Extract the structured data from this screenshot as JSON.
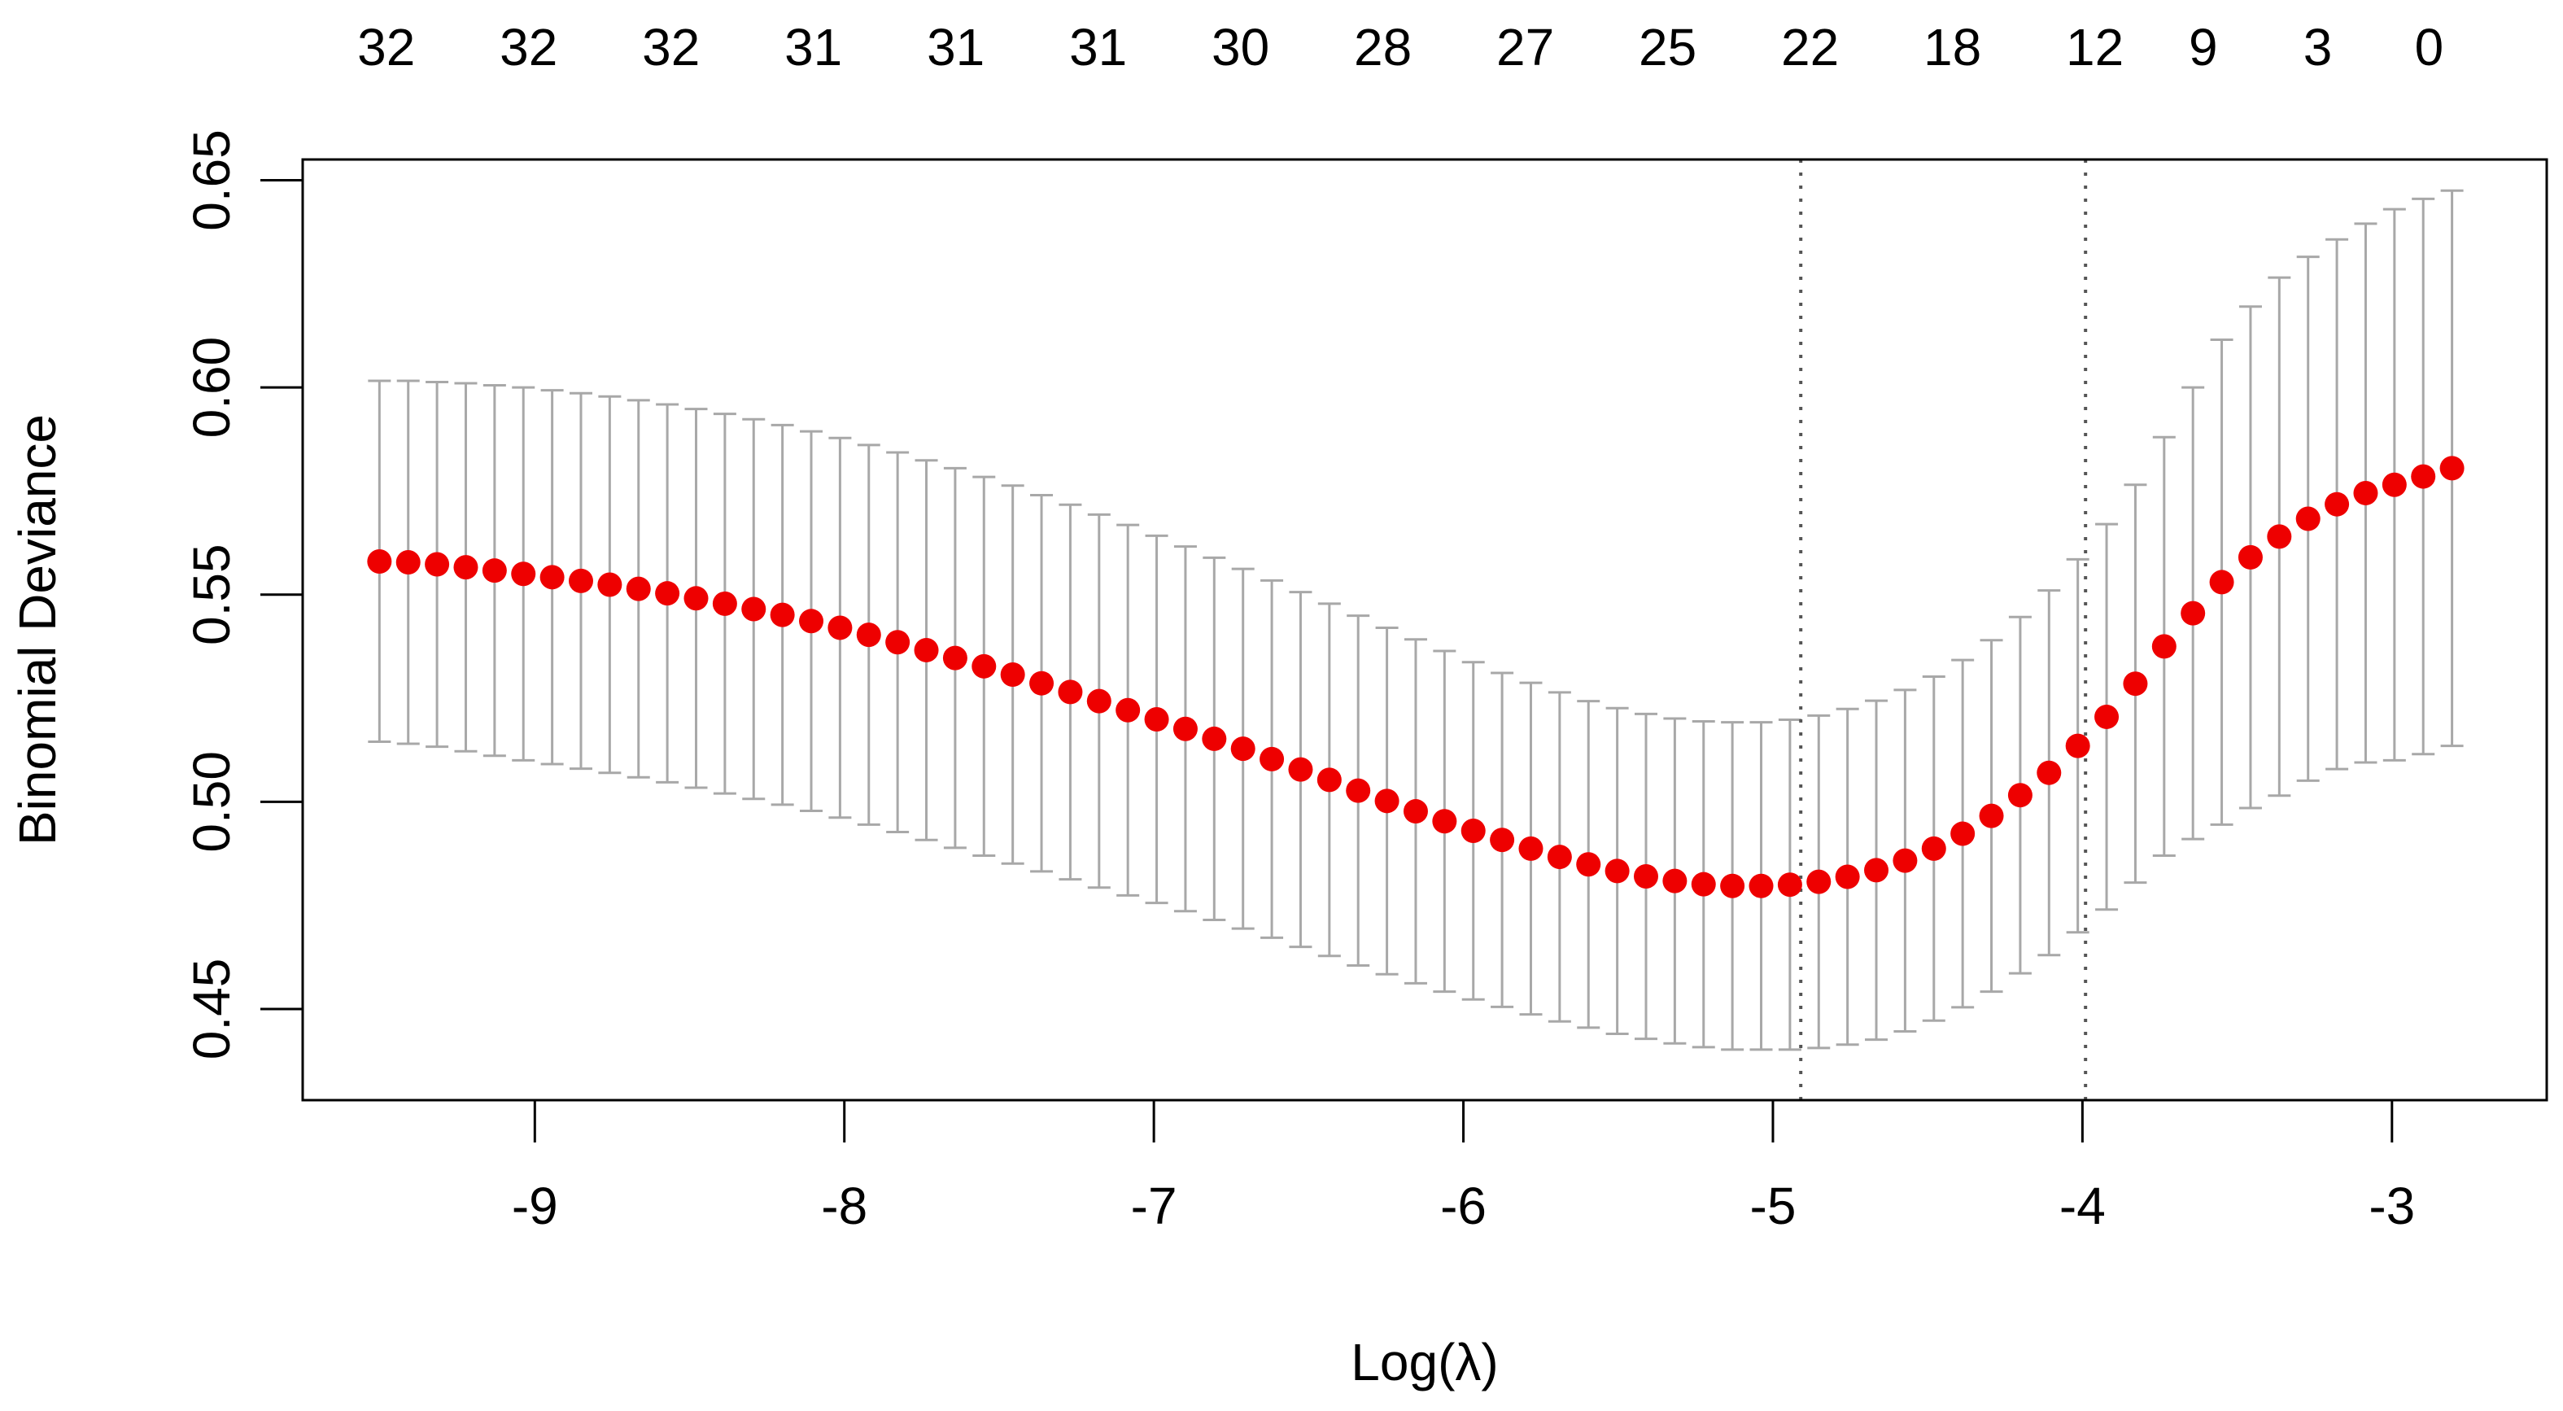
{
  "chart_data": {
    "type": "scatter",
    "title": "",
    "xlabel": "Log(λ)",
    "ylabel": "Binomial Deviance",
    "xlim": [
      -9.75,
      -2.5
    ],
    "ylim": [
      0.428,
      0.655
    ],
    "x_ticks": [
      {
        "value": -9,
        "label": "-9"
      },
      {
        "value": -8,
        "label": "-8"
      },
      {
        "value": -7,
        "label": "-7"
      },
      {
        "value": -6,
        "label": "-6"
      },
      {
        "value": -5,
        "label": "-5"
      },
      {
        "value": -4,
        "label": "-4"
      },
      {
        "value": -3,
        "label": "-3"
      }
    ],
    "y_ticks": [
      {
        "value": 0.45,
        "label": "0.45"
      },
      {
        "value": 0.5,
        "label": "0.50"
      },
      {
        "value": 0.55,
        "label": "0.55"
      },
      {
        "value": 0.6,
        "label": "0.60"
      },
      {
        "value": 0.65,
        "label": "0.65"
      }
    ],
    "top_ticks": [
      {
        "x": -9.48,
        "label": "32"
      },
      {
        "x": -9.02,
        "label": "32"
      },
      {
        "x": -8.56,
        "label": "32"
      },
      {
        "x": -8.1,
        "label": "31"
      },
      {
        "x": -7.64,
        "label": "31"
      },
      {
        "x": -7.18,
        "label": "31"
      },
      {
        "x": -6.72,
        "label": "30"
      },
      {
        "x": -6.26,
        "label": "28"
      },
      {
        "x": -5.8,
        "label": "27"
      },
      {
        "x": -5.34,
        "label": "25"
      },
      {
        "x": -4.88,
        "label": "22"
      },
      {
        "x": -4.42,
        "label": "18"
      },
      {
        "x": -3.96,
        "label": "12"
      },
      {
        "x": -3.61,
        "label": "9"
      },
      {
        "x": -3.24,
        "label": "3"
      },
      {
        "x": -2.88,
        "label": "0"
      }
    ],
    "vlines": [
      -4.91,
      -3.99
    ],
    "series": [
      {
        "color": "#ee0000",
        "errorbar_color": "#a8a8a8",
        "x": [
          -9.502,
          -9.409,
          -9.316,
          -9.223,
          -9.13,
          -9.037,
          -8.944,
          -8.851,
          -8.758,
          -8.665,
          -8.572,
          -8.479,
          -8.386,
          -8.293,
          -8.2,
          -8.107,
          -8.014,
          -7.921,
          -7.828,
          -7.735,
          -7.642,
          -7.549,
          -7.456,
          -7.363,
          -7.27,
          -7.177,
          -7.084,
          -6.991,
          -6.898,
          -6.805,
          -6.712,
          -6.619,
          -6.526,
          -6.433,
          -6.34,
          -6.247,
          -6.154,
          -6.061,
          -5.968,
          -5.875,
          -5.782,
          -5.689,
          -5.596,
          -5.503,
          -5.41,
          -5.317,
          -5.224,
          -5.131,
          -5.038,
          -4.945,
          -4.852,
          -4.759,
          -4.666,
          -4.573,
          -4.48,
          -4.387,
          -4.294,
          -4.201,
          -4.108,
          -4.015,
          -3.922,
          -3.829,
          -3.736,
          -3.643,
          -3.55,
          -3.457,
          -3.364,
          -3.271,
          -3.178,
          -3.085,
          -2.992,
          -2.899,
          -2.806
        ],
        "y": [
          0.558,
          0.5578,
          0.5573,
          0.5566,
          0.5558,
          0.555,
          0.5542,
          0.5533,
          0.5524,
          0.5514,
          0.5503,
          0.5491,
          0.5478,
          0.5465,
          0.5451,
          0.5436,
          0.542,
          0.5403,
          0.5385,
          0.5366,
          0.5347,
          0.5327,
          0.5307,
          0.5286,
          0.5265,
          0.5243,
          0.5221,
          0.5199,
          0.5176,
          0.5152,
          0.5128,
          0.5103,
          0.5078,
          0.5053,
          0.5027,
          0.5002,
          0.4977,
          0.4953,
          0.493,
          0.4908,
          0.4887,
          0.4867,
          0.4849,
          0.4833,
          0.482,
          0.4809,
          0.4801,
          0.4797,
          0.4797,
          0.48,
          0.4807,
          0.4819,
          0.4835,
          0.4858,
          0.4887,
          0.4923,
          0.4966,
          0.5016,
          0.507,
          0.5135,
          0.5205,
          0.5285,
          0.5375,
          0.5455,
          0.553,
          0.559,
          0.564,
          0.5683,
          0.5718,
          0.5745,
          0.5765,
          0.5785,
          0.5805
        ],
        "upper": [
          0.6016,
          0.6016,
          0.6013,
          0.601,
          0.6005,
          0.6,
          0.5993,
          0.5986,
          0.5978,
          0.5969,
          0.5959,
          0.5948,
          0.5936,
          0.5923,
          0.5909,
          0.5894,
          0.5878,
          0.5861,
          0.5843,
          0.5824,
          0.5805,
          0.5784,
          0.5763,
          0.574,
          0.5717,
          0.5693,
          0.5668,
          0.5642,
          0.5616,
          0.5589,
          0.5562,
          0.5534,
          0.5506,
          0.5478,
          0.5449,
          0.542,
          0.5392,
          0.5364,
          0.5337,
          0.5311,
          0.5287,
          0.5264,
          0.5243,
          0.5226,
          0.5212,
          0.5201,
          0.5194,
          0.5192,
          0.5192,
          0.5198,
          0.5208,
          0.5224,
          0.5244,
          0.527,
          0.5302,
          0.5342,
          0.539,
          0.5446,
          0.551,
          0.5585,
          0.567,
          0.5765,
          0.588,
          0.6,
          0.6115,
          0.6195,
          0.6265,
          0.6315,
          0.6357,
          0.6395,
          0.643,
          0.6455,
          0.6475
        ],
        "lower": [
          0.5145,
          0.514,
          0.5133,
          0.5122,
          0.5111,
          0.51,
          0.5091,
          0.508,
          0.507,
          0.5059,
          0.5047,
          0.5034,
          0.502,
          0.5007,
          0.4993,
          0.4978,
          0.4962,
          0.4945,
          0.4927,
          0.4908,
          0.4889,
          0.487,
          0.4851,
          0.4832,
          0.4813,
          0.4793,
          0.4774,
          0.4756,
          0.4736,
          0.4715,
          0.4694,
          0.4672,
          0.465,
          0.4628,
          0.4605,
          0.4584,
          0.4562,
          0.4542,
          0.4523,
          0.4505,
          0.4487,
          0.447,
          0.4455,
          0.444,
          0.4428,
          0.4417,
          0.4408,
          0.4402,
          0.4402,
          0.4402,
          0.4406,
          0.4414,
          0.4426,
          0.4446,
          0.4472,
          0.4504,
          0.4542,
          0.4586,
          0.463,
          0.4685,
          0.474,
          0.4805,
          0.487,
          0.491,
          0.4945,
          0.4985,
          0.5015,
          0.5051,
          0.5079,
          0.5095,
          0.51,
          0.5115,
          0.5135
        ]
      }
    ]
  }
}
